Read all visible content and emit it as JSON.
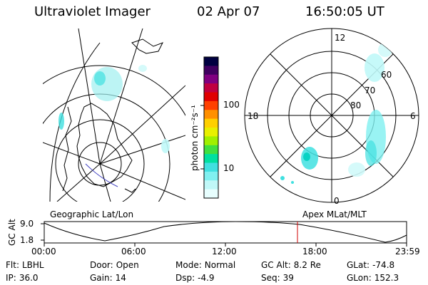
{
  "header": {
    "instrument": "Ultraviolet Imager",
    "date": "02 Apr 07",
    "time": "16:50:05 UT"
  },
  "left_panel": {
    "label": "Geographic Lat/Lon"
  },
  "right_panel": {
    "label": "Apex MLat/MLT",
    "mlt_labels": {
      "top": "12",
      "left": "18",
      "right": "6",
      "bottom": "0"
    },
    "mlat_labels": [
      "60",
      "70",
      "80"
    ]
  },
  "colorbar": {
    "unit_label": "photon cm⁻²s⁻¹",
    "tick_labels": [
      "100",
      "10"
    ],
    "colors": [
      "#000040",
      "#400060",
      "#800080",
      "#c00040",
      "#e00000",
      "#ff4000",
      "#ff9000",
      "#ffd000",
      "#e8f000",
      "#a0f000",
      "#40e040",
      "#00e0a0",
      "#40e0e0",
      "#80f0f0",
      "#c0f8f8",
      "#e8ffff"
    ]
  },
  "altitude_plot": {
    "axis_title": "GC Alt",
    "y_ticks": [
      "9.0",
      "1.8"
    ],
    "x_ticks": [
      "00:00",
      "06:00",
      "12:00",
      "18:00",
      "23:59"
    ],
    "marker_color": "#d00000"
  },
  "info": {
    "row1": [
      {
        "key": "Flt:",
        "value": "LBHL"
      },
      {
        "key": "Door:",
        "value": "Open"
      },
      {
        "key": "Mode:",
        "value": "Normal"
      },
      {
        "key": "GC Alt:",
        "value": "8.2 Re"
      },
      {
        "key": "GLat:",
        "value": "-74.8"
      }
    ],
    "row2": [
      {
        "key": "IP:",
        "value": "36.0"
      },
      {
        "key": "Gain:",
        "value": "14"
      },
      {
        "key": "Dsp:",
        "value": "-4.9"
      },
      {
        "key": "Seq:",
        "value": "39"
      },
      {
        "key": "GLon:",
        "value": "152.3"
      }
    ]
  }
}
